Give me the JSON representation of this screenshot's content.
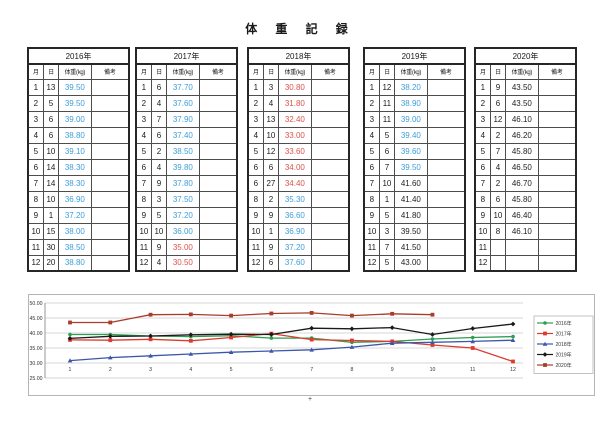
{
  "page": {
    "title": "体 重 記 録",
    "cursor_mark": "+"
  },
  "table_columns": {
    "month": "月",
    "day": "日",
    "weight": "体重(kg)",
    "note": "備考"
  },
  "colors": {
    "blue": "#3f9fda",
    "red": "#d9544d",
    "black": "#1f1f1f"
  },
  "tables": [
    {
      "year": "2016年",
      "rows": [
        {
          "month": "1",
          "day": "13",
          "weight": "39.50",
          "note": "",
          "color": "blue"
        },
        {
          "month": "2",
          "day": "5",
          "weight": "39.50",
          "note": "",
          "color": "blue"
        },
        {
          "month": "3",
          "day": "6",
          "weight": "39.00",
          "note": "",
          "color": "blue"
        },
        {
          "month": "4",
          "day": "6",
          "weight": "38.80",
          "note": "",
          "color": "blue"
        },
        {
          "month": "5",
          "day": "10",
          "weight": "39.10",
          "note": "",
          "color": "blue"
        },
        {
          "month": "6",
          "day": "14",
          "weight": "38.30",
          "note": "",
          "color": "blue"
        },
        {
          "month": "7",
          "day": "14",
          "weight": "38.30",
          "note": "",
          "color": "blue"
        },
        {
          "month": "8",
          "day": "10",
          "weight": "36.90",
          "note": "",
          "color": "blue"
        },
        {
          "month": "9",
          "day": "1",
          "weight": "37.20",
          "note": "",
          "color": "blue"
        },
        {
          "month": "10",
          "day": "15",
          "weight": "38.00",
          "note": "",
          "color": "blue"
        },
        {
          "month": "11",
          "day": "30",
          "weight": "38.50",
          "note": "",
          "color": "blue"
        },
        {
          "month": "12",
          "day": "20",
          "weight": "38.80",
          "note": "",
          "color": "blue"
        }
      ]
    },
    {
      "year": "2017年",
      "rows": [
        {
          "month": "1",
          "day": "6",
          "weight": "37.70",
          "note": "",
          "color": "blue"
        },
        {
          "month": "2",
          "day": "4",
          "weight": "37.60",
          "note": "",
          "color": "blue"
        },
        {
          "month": "3",
          "day": "7",
          "weight": "37.90",
          "note": "",
          "color": "blue"
        },
        {
          "month": "4",
          "day": "6",
          "weight": "37.40",
          "note": "",
          "color": "blue"
        },
        {
          "month": "5",
          "day": "2",
          "weight": "38.50",
          "note": "",
          "color": "blue"
        },
        {
          "month": "6",
          "day": "4",
          "weight": "39.80",
          "note": "",
          "color": "blue"
        },
        {
          "month": "7",
          "day": "9",
          "weight": "37.80",
          "note": "",
          "color": "blue"
        },
        {
          "month": "8",
          "day": "3",
          "weight": "37.50",
          "note": "",
          "color": "blue"
        },
        {
          "month": "9",
          "day": "5",
          "weight": "37.20",
          "note": "",
          "color": "blue"
        },
        {
          "month": "10",
          "day": "10",
          "weight": "36.00",
          "note": "",
          "color": "blue"
        },
        {
          "month": "11",
          "day": "9",
          "weight": "35.00",
          "note": "",
          "color": "red"
        },
        {
          "month": "12",
          "day": "4",
          "weight": "30.50",
          "note": "",
          "color": "red"
        }
      ]
    },
    {
      "year": "2018年",
      "rows": [
        {
          "month": "1",
          "day": "3",
          "weight": "30.80",
          "note": "",
          "color": "red"
        },
        {
          "month": "2",
          "day": "4",
          "weight": "31.80",
          "note": "",
          "color": "red"
        },
        {
          "month": "3",
          "day": "13",
          "weight": "32.40",
          "note": "",
          "color": "red"
        },
        {
          "month": "4",
          "day": "10",
          "weight": "33.00",
          "note": "",
          "color": "red"
        },
        {
          "month": "5",
          "day": "12",
          "weight": "33.60",
          "note": "",
          "color": "red"
        },
        {
          "month": "6",
          "day": "6",
          "weight": "34.00",
          "note": "",
          "color": "red"
        },
        {
          "month": "6",
          "day": "27",
          "weight": "34.40",
          "note": "",
          "color": "red"
        },
        {
          "month": "8",
          "day": "2",
          "weight": "35.30",
          "note": "",
          "color": "blue"
        },
        {
          "month": "9",
          "day": "9",
          "weight": "36.60",
          "note": "",
          "color": "blue"
        },
        {
          "month": "10",
          "day": "1",
          "weight": "36.90",
          "note": "",
          "color": "blue"
        },
        {
          "month": "11",
          "day": "9",
          "weight": "37.20",
          "note": "",
          "color": "blue"
        },
        {
          "month": "12",
          "day": "6",
          "weight": "37.60",
          "note": "",
          "color": "blue"
        }
      ]
    },
    {
      "year": "2019年",
      "rows": [
        {
          "month": "1",
          "day": "12",
          "weight": "38.20",
          "note": "",
          "color": "blue"
        },
        {
          "month": "2",
          "day": "11",
          "weight": "38.90",
          "note": "",
          "color": "blue"
        },
        {
          "month": "3",
          "day": "11",
          "weight": "39.00",
          "note": "",
          "color": "blue"
        },
        {
          "month": "4",
          "day": "5",
          "weight": "39.40",
          "note": "",
          "color": "blue"
        },
        {
          "month": "5",
          "day": "6",
          "weight": "39.60",
          "note": "",
          "color": "blue"
        },
        {
          "month": "6",
          "day": "7",
          "weight": "39.50",
          "note": "",
          "color": "blue"
        },
        {
          "month": "7",
          "day": "10",
          "weight": "41.60",
          "note": "",
          "color": "black"
        },
        {
          "month": "8",
          "day": "1",
          "weight": "41.40",
          "note": "",
          "color": "black"
        },
        {
          "month": "9",
          "day": "5",
          "weight": "41.80",
          "note": "",
          "color": "black"
        },
        {
          "month": "10",
          "day": "3",
          "weight": "39.50",
          "note": "",
          "color": "black"
        },
        {
          "month": "11",
          "day": "7",
          "weight": "41.50",
          "note": "",
          "color": "black"
        },
        {
          "month": "12",
          "day": "5",
          "weight": "43.00",
          "note": "",
          "color": "black"
        }
      ]
    },
    {
      "year": "2020年",
      "rows": [
        {
          "month": "1",
          "day": "9",
          "weight": "43.50",
          "note": "",
          "color": "black"
        },
        {
          "month": "2",
          "day": "6",
          "weight": "43.50",
          "note": "",
          "color": "black"
        },
        {
          "month": "3",
          "day": "12",
          "weight": "46.10",
          "note": "",
          "color": "black"
        },
        {
          "month": "4",
          "day": "2",
          "weight": "46.20",
          "note": "",
          "color": "black"
        },
        {
          "month": "5",
          "day": "7",
          "weight": "45.80",
          "note": "",
          "color": "black"
        },
        {
          "month": "6",
          "day": "4",
          "weight": "46.50",
          "note": "",
          "color": "black"
        },
        {
          "month": "7",
          "day": "2",
          "weight": "46.70",
          "note": "",
          "color": "black"
        },
        {
          "month": "8",
          "day": "6",
          "weight": "45.80",
          "note": "",
          "color": "black"
        },
        {
          "month": "9",
          "day": "10",
          "weight": "46.40",
          "note": "",
          "color": "black"
        },
        {
          "month": "10",
          "day": "8",
          "weight": "46.10",
          "note": "",
          "color": "black"
        },
        {
          "month": "11",
          "day": "",
          "weight": "",
          "note": "",
          "color": "black"
        },
        {
          "month": "12",
          "day": "",
          "weight": "",
          "note": "",
          "color": "black"
        }
      ]
    }
  ],
  "chart_data": {
    "type": "line",
    "title": "",
    "xlabel": "",
    "ylabel": "",
    "x": [
      1,
      2,
      3,
      4,
      5,
      6,
      7,
      8,
      9,
      10,
      11,
      12
    ],
    "ylim": [
      25,
      50
    ],
    "ytick_step": 5,
    "grid": true,
    "legend_position": "right",
    "axis_label_color": "#333333",
    "series": [
      {
        "name": "2016年",
        "color": "#2e9e50",
        "marker": "circle",
        "values": [
          39.5,
          39.5,
          39.0,
          38.8,
          39.1,
          38.3,
          38.3,
          36.9,
          37.2,
          38.0,
          38.5,
          38.8
        ]
      },
      {
        "name": "2017年",
        "color": "#dd3b2f",
        "marker": "square",
        "values": [
          37.7,
          37.6,
          37.9,
          37.4,
          38.5,
          39.8,
          37.8,
          37.5,
          37.2,
          36.0,
          35.0,
          30.5
        ]
      },
      {
        "name": "2018年",
        "color": "#3d57a8",
        "marker": "triangle",
        "values": [
          30.8,
          31.8,
          32.4,
          33.0,
          33.6,
          34.0,
          34.4,
          35.3,
          36.6,
          36.9,
          37.2,
          37.6
        ]
      },
      {
        "name": "2019年",
        "color": "#1a1a1a",
        "marker": "diamond",
        "values": [
          38.2,
          38.9,
          39.0,
          39.4,
          39.6,
          39.5,
          41.6,
          41.4,
          41.8,
          39.5,
          41.5,
          43.0
        ]
      },
      {
        "name": "2020年",
        "color": "#a93c2b",
        "marker": "square",
        "values": [
          43.5,
          43.5,
          46.1,
          46.2,
          45.8,
          46.5,
          46.7,
          45.8,
          46.4,
          46.1,
          null,
          null
        ]
      }
    ]
  }
}
